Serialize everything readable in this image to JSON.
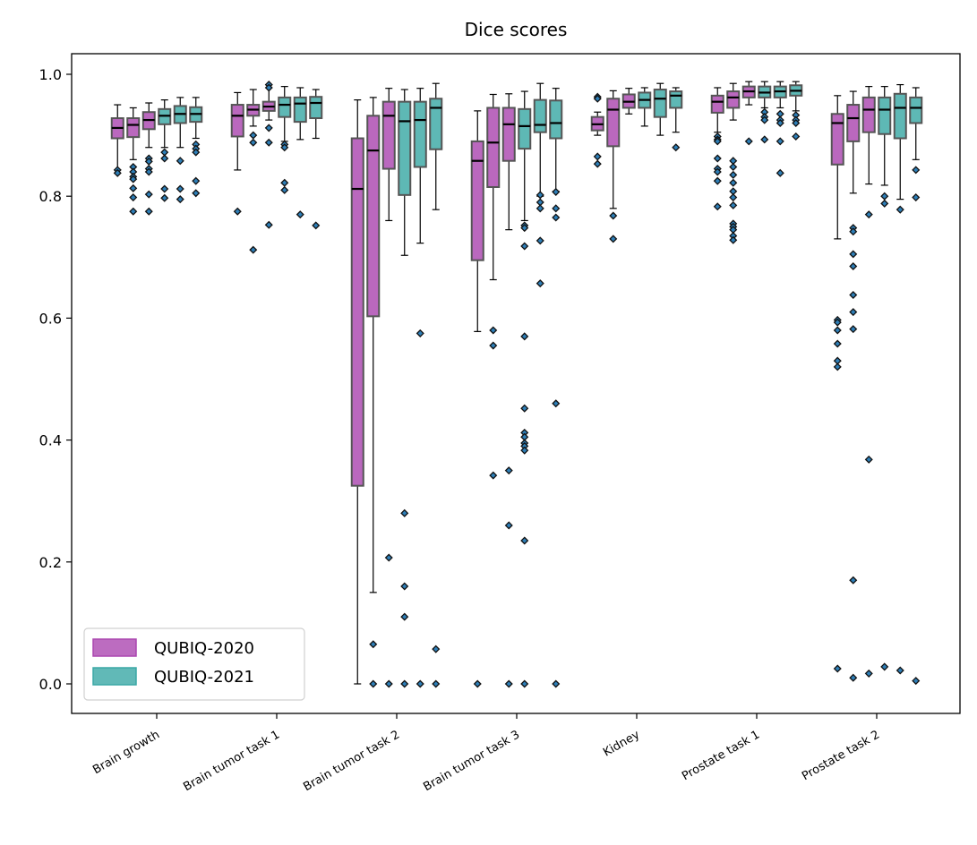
{
  "chart_data": {
    "type": "box",
    "title": "Dice scores",
    "xlabel": "",
    "ylabel": "",
    "ylim": [
      -0.05,
      1.04
    ],
    "yticks": [
      "0.0",
      "0.2",
      "0.4",
      "0.6",
      "0.8",
      "1.0"
    ],
    "ytick_values": [
      0.0,
      0.2,
      0.4,
      0.6,
      0.8,
      1.0
    ],
    "categories": [
      "Brain growth",
      "Brain tumor task 1",
      "Brain tumor task 2",
      "Brain tumor task 3",
      "Kidney",
      "Prostate task 1",
      "Prostate task 2"
    ],
    "legend": {
      "placement": "lower-left",
      "entries": [
        {
          "label": "QUBIQ-2020",
          "color": "#ab47b0"
        },
        {
          "label": "QUBIQ-2021",
          "color": "#3aa8a5"
        }
      ]
    },
    "colors": {
      "QUBIQ-2020": "#ab47b0",
      "QUBIQ-2021": "#3aa8a5"
    },
    "groups": [
      {
        "category": "Brain growth",
        "boxes": [
          {
            "series": "QUBIQ-2020",
            "wlo": 0.843,
            "q1": 0.895,
            "med": 0.912,
            "q3": 0.928,
            "whi": 0.95,
            "outliers": [
              0.843,
              0.838
            ]
          },
          {
            "series": "QUBIQ-2020",
            "wlo": 0.86,
            "q1": 0.897,
            "med": 0.917,
            "q3": 0.928,
            "whi": 0.945,
            "outliers": [
              0.848,
              0.84,
              0.832,
              0.828,
              0.813,
              0.798,
              0.775
            ]
          },
          {
            "series": "QUBIQ-2020",
            "wlo": 0.88,
            "q1": 0.91,
            "med": 0.925,
            "q3": 0.938,
            "whi": 0.953,
            "outliers": [
              0.862,
              0.857,
              0.845,
              0.84,
              0.803,
              0.775
            ]
          },
          {
            "series": "QUBIQ-2021",
            "wlo": 0.88,
            "q1": 0.918,
            "med": 0.932,
            "q3": 0.943,
            "whi": 0.958,
            "outliers": [
              0.872,
              0.862,
              0.812,
              0.797
            ]
          },
          {
            "series": "QUBIQ-2021",
            "wlo": 0.88,
            "q1": 0.92,
            "med": 0.935,
            "q3": 0.948,
            "whi": 0.962,
            "outliers": [
              0.858,
              0.812,
              0.795
            ]
          },
          {
            "series": "QUBIQ-2021",
            "wlo": 0.895,
            "q1": 0.922,
            "med": 0.935,
            "q3": 0.946,
            "whi": 0.962,
            "outliers": [
              0.885,
              0.878,
              0.872,
              0.825,
              0.805
            ]
          }
        ]
      },
      {
        "category": "Brain tumor task 1",
        "boxes": [
          {
            "series": "QUBIQ-2020",
            "wlo": 0.843,
            "q1": 0.898,
            "med": 0.932,
            "q3": 0.95,
            "whi": 0.97,
            "outliers": [
              0.775
            ]
          },
          {
            "series": "QUBIQ-2020",
            "wlo": 0.915,
            "q1": 0.932,
            "med": 0.942,
            "q3": 0.95,
            "whi": 0.975,
            "outliers": [
              0.9,
              0.888,
              0.712
            ]
          },
          {
            "series": "QUBIQ-2020",
            "wlo": 0.925,
            "q1": 0.94,
            "med": 0.947,
            "q3": 0.955,
            "whi": 0.983,
            "outliers": [
              0.983,
              0.978,
              0.912,
              0.888,
              0.753
            ]
          },
          {
            "series": "QUBIQ-2021",
            "wlo": 0.89,
            "q1": 0.93,
            "med": 0.95,
            "q3": 0.962,
            "whi": 0.98,
            "outliers": [
              0.885,
              0.88,
              0.822,
              0.81
            ]
          },
          {
            "series": "QUBIQ-2021",
            "wlo": 0.893,
            "q1": 0.922,
            "med": 0.952,
            "q3": 0.962,
            "whi": 0.978,
            "outliers": [
              0.77
            ]
          },
          {
            "series": "QUBIQ-2021",
            "wlo": 0.895,
            "q1": 0.928,
            "med": 0.953,
            "q3": 0.963,
            "whi": 0.975,
            "outliers": [
              0.752
            ]
          }
        ]
      },
      {
        "category": "Brain tumor task 2",
        "boxes": [
          {
            "series": "QUBIQ-2020",
            "wlo": 0.0,
            "q1": 0.325,
            "med": 0.812,
            "q3": 0.895,
            "whi": 0.958,
            "outliers": []
          },
          {
            "series": "QUBIQ-2020",
            "wlo": 0.15,
            "q1": 0.603,
            "med": 0.875,
            "q3": 0.932,
            "whi": 0.962,
            "outliers": [
              0.065,
              0.0
            ]
          },
          {
            "series": "QUBIQ-2020",
            "wlo": 0.76,
            "q1": 0.845,
            "med": 0.932,
            "q3": 0.955,
            "whi": 0.977,
            "outliers": [
              0.207,
              0.0
            ]
          },
          {
            "series": "QUBIQ-2021",
            "wlo": 0.703,
            "q1": 0.802,
            "med": 0.923,
            "q3": 0.955,
            "whi": 0.975,
            "outliers": [
              0.28,
              0.16,
              0.11,
              0.0
            ]
          },
          {
            "series": "QUBIQ-2021",
            "wlo": 0.723,
            "q1": 0.848,
            "med": 0.925,
            "q3": 0.955,
            "whi": 0.977,
            "outliers": [
              0.575,
              0.0
            ]
          },
          {
            "series": "QUBIQ-2021",
            "wlo": 0.778,
            "q1": 0.877,
            "med": 0.945,
            "q3": 0.96,
            "whi": 0.985,
            "outliers": [
              0.057,
              0.0
            ]
          }
        ]
      },
      {
        "category": "Brain tumor task 3",
        "boxes": [
          {
            "series": "QUBIQ-2020",
            "wlo": 0.578,
            "q1": 0.695,
            "med": 0.858,
            "q3": 0.89,
            "whi": 0.94,
            "outliers": [
              0.0
            ]
          },
          {
            "series": "QUBIQ-2020",
            "wlo": 0.663,
            "q1": 0.815,
            "med": 0.888,
            "q3": 0.945,
            "whi": 0.967,
            "outliers": [
              0.58,
              0.555,
              0.342
            ]
          },
          {
            "series": "QUBIQ-2020",
            "wlo": 0.745,
            "q1": 0.858,
            "med": 0.918,
            "q3": 0.945,
            "whi": 0.968,
            "outliers": [
              0.35,
              0.26,
              0.0
            ]
          },
          {
            "series": "QUBIQ-2021",
            "wlo": 0.76,
            "q1": 0.878,
            "med": 0.915,
            "q3": 0.943,
            "whi": 0.972,
            "outliers": [
              0.752,
              0.748,
              0.718,
              0.57,
              0.452,
              0.412,
              0.405,
              0.395,
              0.39,
              0.383,
              0.235,
              0.0
            ]
          },
          {
            "series": "QUBIQ-2021",
            "wlo": 0.8,
            "q1": 0.905,
            "med": 0.917,
            "q3": 0.958,
            "whi": 0.985,
            "outliers": [
              0.802,
              0.79,
              0.78,
              0.727,
              0.657
            ]
          },
          {
            "series": "QUBIQ-2021",
            "wlo": 0.808,
            "q1": 0.895,
            "med": 0.92,
            "q3": 0.957,
            "whi": 0.977,
            "outliers": [
              0.807,
              0.78,
              0.765,
              0.46,
              0.0
            ]
          }
        ]
      },
      {
        "category": "Kidney",
        "boxes": [
          {
            "series": "QUBIQ-2020",
            "wlo": 0.9,
            "q1": 0.908,
            "med": 0.918,
            "q3": 0.93,
            "whi": 0.938,
            "outliers": [
              0.963,
              0.96,
              0.865,
              0.853
            ]
          },
          {
            "series": "QUBIQ-2020",
            "wlo": 0.78,
            "q1": 0.882,
            "med": 0.942,
            "q3": 0.96,
            "whi": 0.973,
            "outliers": [
              0.768,
              0.73
            ]
          },
          {
            "series": "QUBIQ-2020",
            "wlo": 0.935,
            "q1": 0.945,
            "med": 0.955,
            "q3": 0.967,
            "whi": 0.977,
            "outliers": []
          },
          {
            "series": "QUBIQ-2021",
            "wlo": 0.915,
            "q1": 0.945,
            "med": 0.958,
            "q3": 0.97,
            "whi": 0.978,
            "outliers": []
          },
          {
            "series": "QUBIQ-2021",
            "wlo": 0.9,
            "q1": 0.93,
            "med": 0.96,
            "q3": 0.975,
            "whi": 0.985,
            "outliers": []
          },
          {
            "series": "QUBIQ-2021",
            "wlo": 0.905,
            "q1": 0.945,
            "med": 0.965,
            "q3": 0.972,
            "whi": 0.978,
            "outliers": [
              0.88
            ]
          }
        ]
      },
      {
        "category": "Prostate task 1",
        "boxes": [
          {
            "series": "QUBIQ-2020",
            "wlo": 0.905,
            "q1": 0.937,
            "med": 0.955,
            "q3": 0.965,
            "whi": 0.978,
            "outliers": [
              0.898,
              0.893,
              0.89,
              0.862,
              0.845,
              0.84,
              0.825,
              0.783
            ]
          },
          {
            "series": "QUBIQ-2020",
            "wlo": 0.925,
            "q1": 0.945,
            "med": 0.962,
            "q3": 0.972,
            "whi": 0.985,
            "outliers": [
              0.858,
              0.848,
              0.835,
              0.822,
              0.808,
              0.798,
              0.785,
              0.755,
              0.75,
              0.745,
              0.735,
              0.728
            ]
          },
          {
            "series": "QUBIQ-2020",
            "wlo": 0.95,
            "q1": 0.962,
            "med": 0.972,
            "q3": 0.98,
            "whi": 0.988,
            "outliers": [
              0.89
            ]
          },
          {
            "series": "QUBIQ-2021",
            "wlo": 0.945,
            "q1": 0.962,
            "med": 0.97,
            "q3": 0.98,
            "whi": 0.988,
            "outliers": [
              0.938,
              0.93,
              0.925,
              0.893
            ]
          },
          {
            "series": "QUBIQ-2021",
            "wlo": 0.945,
            "q1": 0.962,
            "med": 0.972,
            "q3": 0.98,
            "whi": 0.988,
            "outliers": [
              0.935,
              0.925,
              0.92,
              0.89,
              0.838
            ]
          },
          {
            "series": "QUBIQ-2021",
            "wlo": 0.94,
            "q1": 0.965,
            "med": 0.973,
            "q3": 0.982,
            "whi": 0.988,
            "outliers": [
              0.933,
              0.925,
              0.92,
              0.898
            ]
          }
        ]
      },
      {
        "category": "Prostate task 2",
        "boxes": [
          {
            "series": "QUBIQ-2020",
            "wlo": 0.73,
            "q1": 0.852,
            "med": 0.92,
            "q3": 0.935,
            "whi": 0.965,
            "outliers": [
              0.597,
              0.593,
              0.58,
              0.558,
              0.53,
              0.52,
              0.025
            ]
          },
          {
            "series": "QUBIQ-2020",
            "wlo": 0.805,
            "q1": 0.89,
            "med": 0.928,
            "q3": 0.95,
            "whi": 0.972,
            "outliers": [
              0.748,
              0.742,
              0.705,
              0.685,
              0.638,
              0.61,
              0.582,
              0.17,
              0.01
            ]
          },
          {
            "series": "QUBIQ-2020",
            "wlo": 0.82,
            "q1": 0.905,
            "med": 0.942,
            "q3": 0.962,
            "whi": 0.98,
            "outliers": [
              0.77,
              0.368,
              0.017
            ]
          },
          {
            "series": "QUBIQ-2021",
            "wlo": 0.818,
            "q1": 0.902,
            "med": 0.942,
            "q3": 0.962,
            "whi": 0.98,
            "outliers": [
              0.8,
              0.788,
              0.028
            ]
          },
          {
            "series": "QUBIQ-2021",
            "wlo": 0.795,
            "q1": 0.895,
            "med": 0.945,
            "q3": 0.968,
            "whi": 0.983,
            "outliers": [
              0.778,
              0.022
            ]
          },
          {
            "series": "QUBIQ-2021",
            "wlo": 0.86,
            "q1": 0.92,
            "med": 0.945,
            "q3": 0.962,
            "whi": 0.978,
            "outliers": [
              0.843,
              0.798,
              0.005
            ]
          }
        ]
      }
    ]
  }
}
